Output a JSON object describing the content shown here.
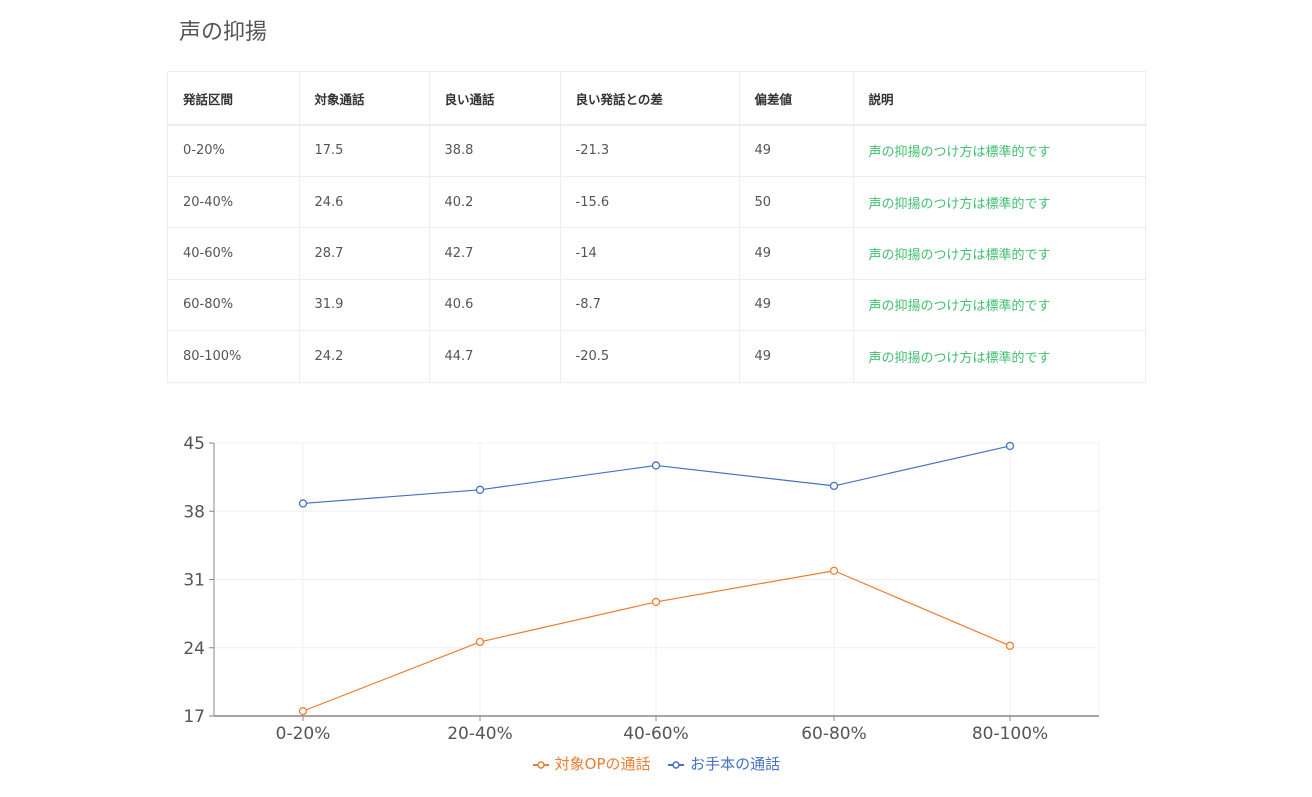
{
  "page": {
    "title": "声の抑揚"
  },
  "table": {
    "headers": [
      "発話区間",
      "対象通話",
      "良い通話",
      "良い発話との差",
      "偏差値",
      "説明"
    ],
    "rows": [
      [
        "0-20%",
        "17.5",
        "38.8",
        "-21.3",
        "49",
        "声の抑揚のつけ方は標準的です"
      ],
      [
        "20-40%",
        "24.6",
        "40.2",
        "-15.6",
        "50",
        "声の抑揚のつけ方は標準的です"
      ],
      [
        "40-60%",
        "28.7",
        "42.7",
        "-14",
        "49",
        "声の抑揚のつけ方は標準的です"
      ],
      [
        "60-80%",
        "31.9",
        "40.6",
        "-8.7",
        "49",
        "声の抑揚のつけ方は標準的です"
      ],
      [
        "80-100%",
        "24.2",
        "44.7",
        "-20.5",
        "49",
        "声の抑揚のつけ方は標準的です"
      ]
    ]
  },
  "chart_data": {
    "type": "line",
    "categories": [
      "0-20%",
      "20-40%",
      "40-60%",
      "60-80%",
      "80-100%"
    ],
    "series": [
      {
        "name": "対象OPの通話",
        "color": "#ed7d31",
        "values": [
          17.5,
          24.6,
          28.7,
          31.9,
          24.2
        ]
      },
      {
        "name": "お手本の通話",
        "color": "#4472c4",
        "values": [
          38.8,
          40.2,
          42.7,
          40.6,
          44.7
        ]
      }
    ],
    "ylim": [
      17,
      45
    ],
    "yticks": [
      17,
      24,
      31,
      38,
      45
    ],
    "grid": true,
    "legend_position": "bottom"
  },
  "colors": {
    "desc_text": "#3fbf6f",
    "axis": "#888888",
    "grid": "#f0f0f0"
  }
}
